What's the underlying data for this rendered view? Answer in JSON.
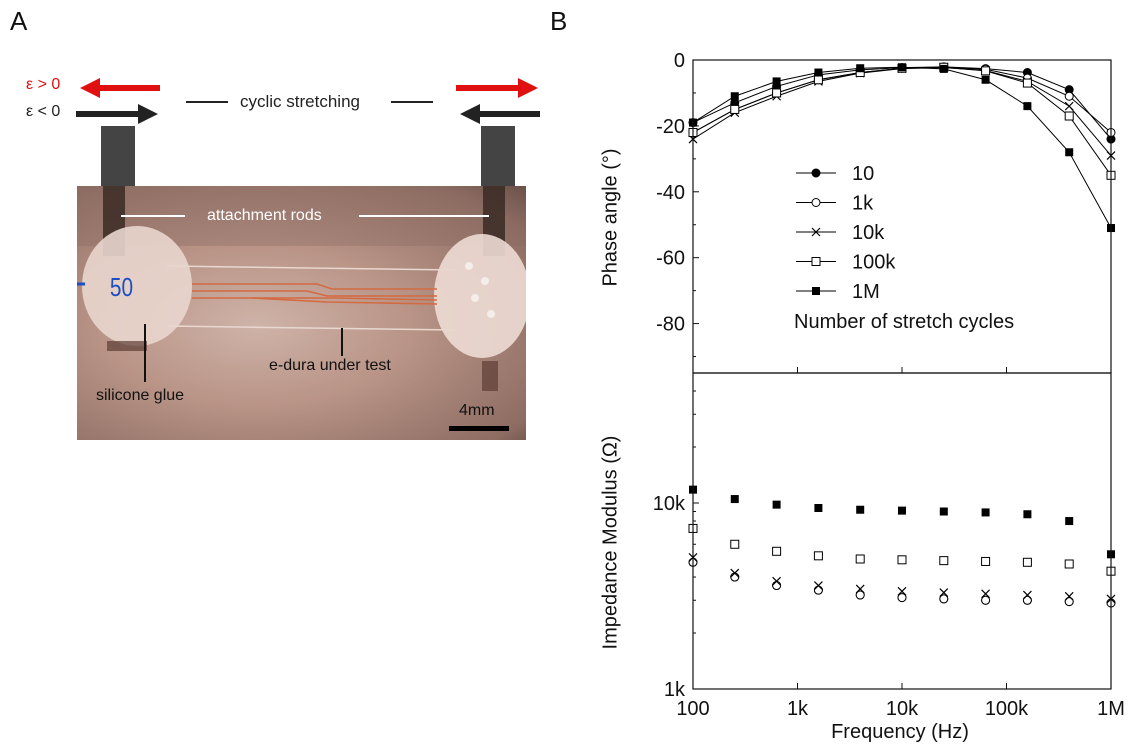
{
  "panel_a": {
    "letter": "A",
    "strain_positive": "ε > 0",
    "strain_negative": "ε < 0",
    "cyclic_label": "cyclic stretching",
    "attachment_label": "attachment rods",
    "sample_number": "50",
    "edura_label": "e-dura under test",
    "glue_label": "silicone glue",
    "scale_label": "4mm",
    "colors": {
      "positive_arrow": "#e01010",
      "negative_arrow": "#222222"
    }
  },
  "panel_b": {
    "letter": "B"
  },
  "chart_data": [
    {
      "type": "scatter",
      "panel": "B-top",
      "ylabel": "Phase angle (°)",
      "xscale": "log",
      "xlim": [
        100,
        1000000
      ],
      "ylim": [
        -95,
        0
      ],
      "yticks": [
        0,
        -20,
        -40,
        -60,
        -80
      ],
      "ytick_labels": [
        "0",
        "-20",
        "-40",
        "-60",
        "-80"
      ],
      "legend_title": "Number of stretch cycles",
      "legend_location": "center-left",
      "x": [
        100,
        251,
        631,
        1585,
        3981,
        10000,
        25119,
        63096,
        158489,
        398107,
        1000000
      ],
      "series": [
        {
          "name": "10",
          "marker": "filled-circle",
          "values": [
            -19,
            -13,
            -8,
            -4.5,
            -3,
            -2.3,
            -2.1,
            -2.6,
            -3.8,
            -9,
            -24
          ]
        },
        {
          "name": "1k",
          "marker": "open-circle",
          "values": [
            -22,
            -15,
            -10,
            -6,
            -3.8,
            -2.5,
            -2.2,
            -2.8,
            -5.5,
            -11,
            -22
          ]
        },
        {
          "name": "10k",
          "marker": "x",
          "values": [
            -24,
            -16,
            -11,
            -6.5,
            -4,
            -2.6,
            -2.3,
            -3.2,
            -6.5,
            -14,
            -29
          ]
        },
        {
          "name": "100k",
          "marker": "open-square",
          "values": [
            -22,
            -15,
            -10,
            -6,
            -3.8,
            -2.5,
            -2.2,
            -3.3,
            -7,
            -17,
            -35
          ]
        },
        {
          "name": "1M",
          "marker": "filled-square",
          "values": [
            -19,
            -11,
            -6.5,
            -3.8,
            -2.5,
            -2.2,
            -2.7,
            -6,
            -14,
            -28,
            -51
          ]
        }
      ]
    },
    {
      "type": "scatter",
      "panel": "B-bottom",
      "ylabel": "Impedance Modulus (Ω)",
      "xlabel": "Frequency (Hz)",
      "xscale": "log",
      "yscale": "log",
      "xlim": [
        100,
        1000000
      ],
      "ylim": [
        1000,
        50000
      ],
      "xticks": [
        100,
        1000,
        10000,
        100000,
        1000000
      ],
      "xtick_labels": [
        "100",
        "1k",
        "10k",
        "100k",
        "1M"
      ],
      "yticks": [
        1000,
        10000
      ],
      "ytick_labels": [
        "1k",
        "10k"
      ],
      "x": [
        100,
        251,
        631,
        1585,
        3981,
        10000,
        25119,
        63096,
        158489,
        398107,
        1000000
      ],
      "series": [
        {
          "name": "10",
          "marker": "filled-circle",
          "values": [
            4800,
            4000,
            3600,
            3400,
            3200,
            3100,
            3050,
            3000,
            3000,
            2950,
            2900
          ]
        },
        {
          "name": "1k",
          "marker": "open-circle",
          "values": [
            4800,
            4000,
            3600,
            3400,
            3200,
            3100,
            3050,
            3000,
            3000,
            2950,
            2900
          ]
        },
        {
          "name": "10k",
          "marker": "x",
          "values": [
            5100,
            4200,
            3800,
            3600,
            3450,
            3350,
            3300,
            3250,
            3200,
            3150,
            3050
          ]
        },
        {
          "name": "100k",
          "marker": "open-square",
          "values": [
            7300,
            6000,
            5500,
            5200,
            5000,
            4950,
            4900,
            4850,
            4800,
            4700,
            4300
          ]
        },
        {
          "name": "1M",
          "marker": "filled-square",
          "values": [
            11800,
            10500,
            9800,
            9400,
            9200,
            9100,
            9000,
            8900,
            8700,
            8000,
            5300
          ]
        }
      ]
    }
  ]
}
